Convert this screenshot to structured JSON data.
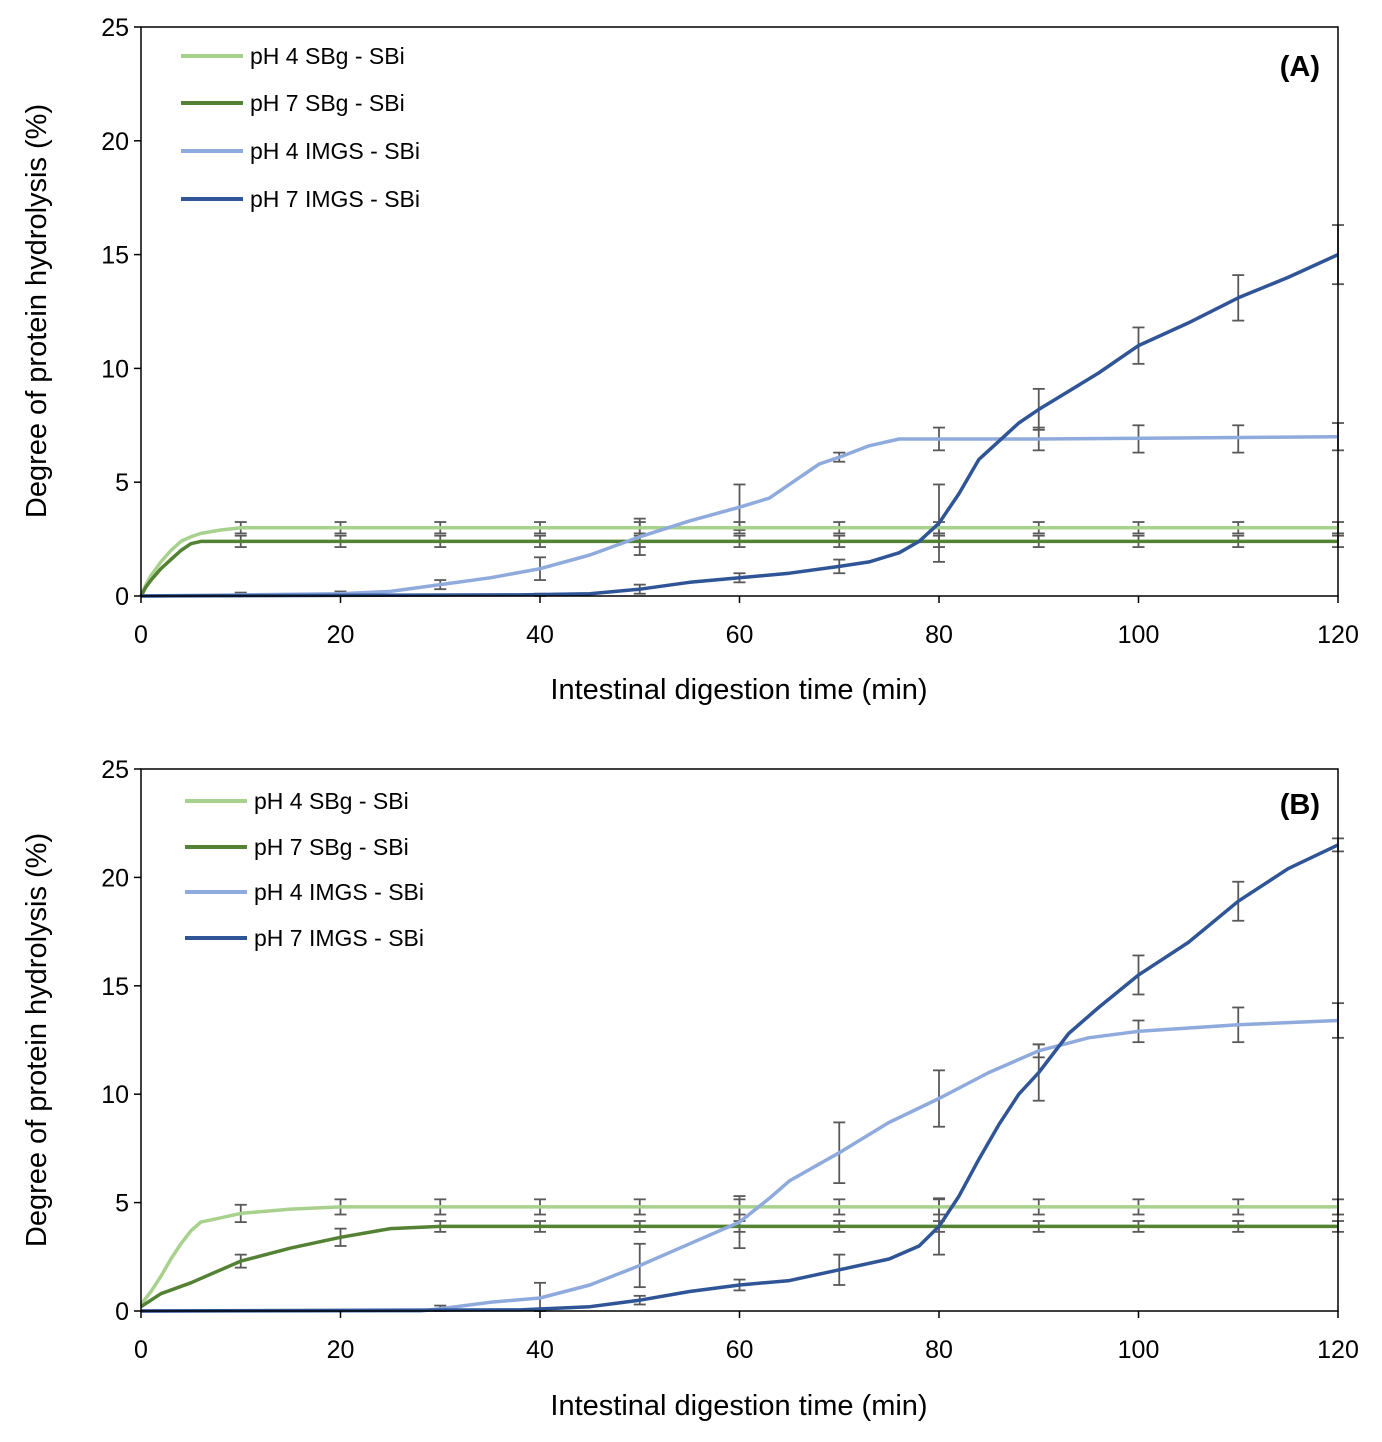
{
  "chart_data": [
    {
      "panel": "(A)",
      "type": "line",
      "xlabel": "Intestinal digestion time (min)",
      "ylabel": "Degree of protein hydrolysis (%)",
      "xlim": [
        0,
        120
      ],
      "ylim": [
        0,
        25
      ],
      "xticks": [
        "0",
        "20",
        "40",
        "60",
        "80",
        "100",
        "120"
      ],
      "yticks": [
        "0",
        "5",
        "10",
        "15",
        "20",
        "25"
      ],
      "legend_position": "top-left",
      "series": [
        {
          "name": "pH 4 SBg - SBi",
          "color": "#a9d18e",
          "points": [
            [
              0,
              0
            ],
            [
              0.5,
              0.5
            ],
            [
              1,
              0.9
            ],
            [
              2,
              1.5
            ],
            [
              3,
              2.0
            ],
            [
              4,
              2.4
            ],
            [
              5,
              2.6
            ],
            [
              6,
              2.75
            ],
            [
              8,
              2.9
            ],
            [
              10,
              3.0
            ],
            [
              15,
              3.0
            ],
            [
              120,
              3.0
            ]
          ],
          "errors": [
            {
              "x": 10,
              "y": 3.0,
              "e": 0.25
            },
            {
              "x": 20,
              "y": 3.0,
              "e": 0.25
            },
            {
              "x": 30,
              "y": 3.0,
              "e": 0.25
            },
            {
              "x": 40,
              "y": 3.0,
              "e": 0.25
            },
            {
              "x": 50,
              "y": 3.0,
              "e": 0.25
            },
            {
              "x": 60,
              "y": 3.0,
              "e": 0.25
            },
            {
              "x": 70,
              "y": 3.0,
              "e": 0.25
            },
            {
              "x": 80,
              "y": 3.0,
              "e": 0.25
            },
            {
              "x": 90,
              "y": 3.0,
              "e": 0.25
            },
            {
              "x": 100,
              "y": 3.0,
              "e": 0.25
            },
            {
              "x": 110,
              "y": 3.0,
              "e": 0.25
            },
            {
              "x": 120,
              "y": 3.0,
              "e": 0.25
            }
          ]
        },
        {
          "name": "pH 7 SBg - SBi",
          "color": "#548235",
          "points": [
            [
              0,
              0
            ],
            [
              0.5,
              0.4
            ],
            [
              1,
              0.7
            ],
            [
              2,
              1.2
            ],
            [
              3,
              1.6
            ],
            [
              4,
              2.0
            ],
            [
              5,
              2.3
            ],
            [
              6,
              2.4
            ],
            [
              120,
              2.4
            ]
          ],
          "errors": [
            {
              "x": 10,
              "y": 2.4,
              "e": 0.25
            },
            {
              "x": 20,
              "y": 2.4,
              "e": 0.25
            },
            {
              "x": 30,
              "y": 2.4,
              "e": 0.25
            },
            {
              "x": 40,
              "y": 2.4,
              "e": 0.25
            },
            {
              "x": 50,
              "y": 2.4,
              "e": 0.25
            },
            {
              "x": 60,
              "y": 2.4,
              "e": 0.25
            },
            {
              "x": 70,
              "y": 2.4,
              "e": 0.25
            },
            {
              "x": 80,
              "y": 2.4,
              "e": 0.25
            },
            {
              "x": 90,
              "y": 2.4,
              "e": 0.25
            },
            {
              "x": 100,
              "y": 2.4,
              "e": 0.25
            },
            {
              "x": 110,
              "y": 2.4,
              "e": 0.25
            },
            {
              "x": 120,
              "y": 2.4,
              "e": 0.25
            }
          ]
        },
        {
          "name": "pH 4 IMGS - SBi",
          "color": "#8faadc",
          "points": [
            [
              0,
              0
            ],
            [
              10,
              0.05
            ],
            [
              20,
              0.1
            ],
            [
              25,
              0.2
            ],
            [
              30,
              0.5
            ],
            [
              35,
              0.8
            ],
            [
              40,
              1.2
            ],
            [
              45,
              1.8
            ],
            [
              50,
              2.6
            ],
            [
              55,
              3.3
            ],
            [
              60,
              3.9
            ],
            [
              63,
              4.3
            ],
            [
              66,
              5.2
            ],
            [
              68,
              5.8
            ],
            [
              70,
              6.1
            ],
            [
              73,
              6.6
            ],
            [
              76,
              6.9
            ],
            [
              80,
              6.9
            ],
            [
              90,
              6.9
            ],
            [
              120,
              7.0
            ]
          ],
          "errors": [
            {
              "x": 10,
              "y": 0.05,
              "e": 0.1
            },
            {
              "x": 20,
              "y": 0.1,
              "e": 0.1
            },
            {
              "x": 30,
              "y": 0.5,
              "e": 0.2
            },
            {
              "x": 40,
              "y": 1.2,
              "e": 0.5
            },
            {
              "x": 50,
              "y": 2.6,
              "e": 0.8
            },
            {
              "x": 60,
              "y": 3.9,
              "e": 1.0
            },
            {
              "x": 70,
              "y": 6.1,
              "e": 0.2
            },
            {
              "x": 80,
              "y": 6.9,
              "e": 0.5
            },
            {
              "x": 90,
              "y": 6.9,
              "e": 0.5
            },
            {
              "x": 100,
              "y": 6.9,
              "e": 0.6
            },
            {
              "x": 110,
              "y": 6.9,
              "e": 0.6
            },
            {
              "x": 120,
              "y": 7.0,
              "e": 0.6
            }
          ]
        },
        {
          "name": "pH 7 IMGS - SBi",
          "color": "#2f5597",
          "points": [
            [
              0,
              0
            ],
            [
              38,
              0.05
            ],
            [
              45,
              0.1
            ],
            [
              50,
              0.3
            ],
            [
              55,
              0.6
            ],
            [
              60,
              0.8
            ],
            [
              65,
              1.0
            ],
            [
              70,
              1.3
            ],
            [
              73,
              1.5
            ],
            [
              76,
              1.9
            ],
            [
              78,
              2.4
            ],
            [
              80,
              3.2
            ],
            [
              82,
              4.5
            ],
            [
              84,
              6.0
            ],
            [
              86,
              6.8
            ],
            [
              88,
              7.6
            ],
            [
              90,
              8.2
            ],
            [
              93,
              9.0
            ],
            [
              96,
              9.8
            ],
            [
              100,
              11.0
            ],
            [
              105,
              12.0
            ],
            [
              110,
              13.1
            ],
            [
              115,
              14.0
            ],
            [
              120,
              15.0
            ]
          ],
          "errors": [
            {
              "x": 40,
              "y": 0.05,
              "e": 0.05
            },
            {
              "x": 50,
              "y": 0.3,
              "e": 0.2
            },
            {
              "x": 60,
              "y": 0.8,
              "e": 0.2
            },
            {
              "x": 70,
              "y": 1.3,
              "e": 0.3
            },
            {
              "x": 80,
              "y": 3.2,
              "e": 1.7
            },
            {
              "x": 90,
              "y": 8.2,
              "e": 0.9
            },
            {
              "x": 100,
              "y": 11.0,
              "e": 0.8
            },
            {
              "x": 110,
              "y": 13.1,
              "e": 1.0
            },
            {
              "x": 120,
              "y": 15.0,
              "e": 1.3
            }
          ]
        }
      ]
    },
    {
      "panel": "(B)",
      "type": "line",
      "xlabel": "Intestinal digestion time (min)",
      "ylabel": "Degree of protein hydrolysis (%)",
      "xlim": [
        0,
        120
      ],
      "ylim": [
        0,
        25
      ],
      "xticks": [
        "0",
        "20",
        "40",
        "60",
        "80",
        "100",
        "120"
      ],
      "yticks": [
        "0",
        "5",
        "10",
        "15",
        "20",
        "25"
      ],
      "legend_position": "top-left",
      "series": [
        {
          "name": "pH 4 SBg - SBi",
          "color": "#a9d18e",
          "points": [
            [
              0,
              0.3
            ],
            [
              1,
              0.9
            ],
            [
              2,
              1.6
            ],
            [
              3,
              2.4
            ],
            [
              4,
              3.1
            ],
            [
              5,
              3.7
            ],
            [
              6,
              4.1
            ],
            [
              8,
              4.3
            ],
            [
              10,
              4.5
            ],
            [
              15,
              4.7
            ],
            [
              20,
              4.8
            ],
            [
              120,
              4.8
            ]
          ],
          "errors": [
            {
              "x": 10,
              "y": 4.5,
              "e": 0.4
            },
            {
              "x": 20,
              "y": 4.8,
              "e": 0.35
            },
            {
              "x": 30,
              "y": 4.8,
              "e": 0.35
            },
            {
              "x": 40,
              "y": 4.8,
              "e": 0.35
            },
            {
              "x": 50,
              "y": 4.8,
              "e": 0.35
            },
            {
              "x": 60,
              "y": 4.8,
              "e": 0.35
            },
            {
              "x": 70,
              "y": 4.8,
              "e": 0.35
            },
            {
              "x": 80,
              "y": 4.8,
              "e": 0.35
            },
            {
              "x": 90,
              "y": 4.8,
              "e": 0.35
            },
            {
              "x": 100,
              "y": 4.8,
              "e": 0.35
            },
            {
              "x": 110,
              "y": 4.8,
              "e": 0.35
            },
            {
              "x": 120,
              "y": 4.8,
              "e": 0.35
            }
          ]
        },
        {
          "name": "pH 7 SBg - SBi",
          "color": "#548235",
          "points": [
            [
              0,
              0.2
            ],
            [
              2,
              0.8
            ],
            [
              5,
              1.3
            ],
            [
              8,
              1.9
            ],
            [
              10,
              2.3
            ],
            [
              15,
              2.9
            ],
            [
              20,
              3.4
            ],
            [
              25,
              3.8
            ],
            [
              30,
              3.9
            ],
            [
              120,
              3.9
            ]
          ],
          "errors": [
            {
              "x": 10,
              "y": 2.3,
              "e": 0.3
            },
            {
              "x": 20,
              "y": 3.4,
              "e": 0.4
            },
            {
              "x": 30,
              "y": 3.9,
              "e": 0.25
            },
            {
              "x": 40,
              "y": 3.9,
              "e": 0.25
            },
            {
              "x": 50,
              "y": 3.9,
              "e": 0.25
            },
            {
              "x": 60,
              "y": 3.9,
              "e": 0.25
            },
            {
              "x": 70,
              "y": 3.9,
              "e": 0.25
            },
            {
              "x": 80,
              "y": 3.9,
              "e": 0.25
            },
            {
              "x": 90,
              "y": 3.9,
              "e": 0.25
            },
            {
              "x": 100,
              "y": 3.9,
              "e": 0.25
            },
            {
              "x": 110,
              "y": 3.9,
              "e": 0.25
            },
            {
              "x": 120,
              "y": 3.9,
              "e": 0.25
            }
          ]
        },
        {
          "name": "pH 4 IMGS - SBi",
          "color": "#8faadc",
          "points": [
            [
              0,
              0
            ],
            [
              28,
              0
            ],
            [
              30,
              0.1
            ],
            [
              35,
              0.4
            ],
            [
              40,
              0.6
            ],
            [
              45,
              1.2
            ],
            [
              50,
              2.1
            ],
            [
              55,
              3.1
            ],
            [
              60,
              4.1
            ],
            [
              63,
              5.2
            ],
            [
              65,
              6.0
            ],
            [
              70,
              7.3
            ],
            [
              75,
              8.7
            ],
            [
              80,
              9.8
            ],
            [
              85,
              11.0
            ],
            [
              90,
              12.0
            ],
            [
              95,
              12.6
            ],
            [
              100,
              12.9
            ],
            [
              110,
              13.2
            ],
            [
              120,
              13.4
            ]
          ],
          "errors": [
            {
              "x": 30,
              "y": 0.1,
              "e": 0.15
            },
            {
              "x": 40,
              "y": 0.6,
              "e": 0.7
            },
            {
              "x": 50,
              "y": 2.1,
              "e": 1.0
            },
            {
              "x": 60,
              "y": 4.1,
              "e": 1.2
            },
            {
              "x": 70,
              "y": 7.3,
              "e": 1.4
            },
            {
              "x": 80,
              "y": 9.8,
              "e": 1.3
            },
            {
              "x": 90,
              "y": 12.0,
              "e": 0.3
            },
            {
              "x": 100,
              "y": 12.9,
              "e": 0.5
            },
            {
              "x": 110,
              "y": 13.2,
              "e": 0.8
            },
            {
              "x": 120,
              "y": 13.4,
              "e": 0.8
            }
          ]
        },
        {
          "name": "pH 7 IMGS - SBi",
          "color": "#2f5597",
          "points": [
            [
              0,
              0
            ],
            [
              38,
              0.05
            ],
            [
              45,
              0.2
            ],
            [
              50,
              0.5
            ],
            [
              55,
              0.9
            ],
            [
              60,
              1.2
            ],
            [
              65,
              1.4
            ],
            [
              70,
              1.9
            ],
            [
              75,
              2.4
            ],
            [
              78,
              3.0
            ],
            [
              80,
              3.9
            ],
            [
              82,
              5.3
            ],
            [
              84,
              7.0
            ],
            [
              86,
              8.6
            ],
            [
              88,
              10.0
            ],
            [
              90,
              11.0
            ],
            [
              93,
              12.8
            ],
            [
              96,
              14.0
            ],
            [
              100,
              15.5
            ],
            [
              105,
              17.0
            ],
            [
              110,
              18.9
            ],
            [
              115,
              20.4
            ],
            [
              120,
              21.5
            ]
          ],
          "errors": [
            {
              "x": 40,
              "y": 0.05,
              "e": 0.05
            },
            {
              "x": 50,
              "y": 0.5,
              "e": 0.2
            },
            {
              "x": 60,
              "y": 1.2,
              "e": 0.25
            },
            {
              "x": 70,
              "y": 1.9,
              "e": 0.7
            },
            {
              "x": 80,
              "y": 3.9,
              "e": 1.3
            },
            {
              "x": 90,
              "y": 11.0,
              "e": 1.3
            },
            {
              "x": 100,
              "y": 15.5,
              "e": 0.9
            },
            {
              "x": 110,
              "y": 18.9,
              "e": 0.9
            },
            {
              "x": 120,
              "y": 21.5,
              "e": 0.3
            }
          ]
        }
      ]
    }
  ]
}
